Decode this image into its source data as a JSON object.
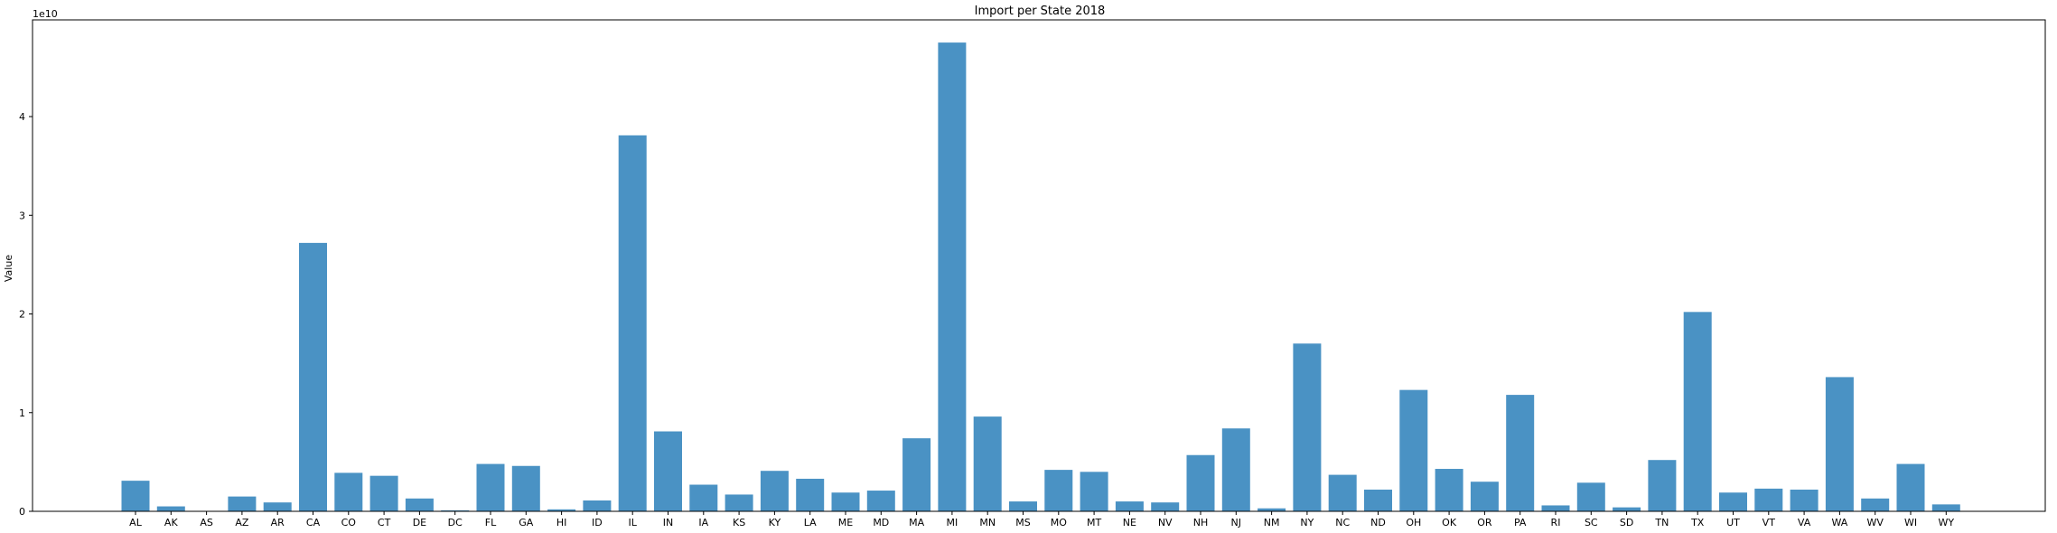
{
  "chart_data": {
    "type": "bar",
    "title": "Import per State 2018",
    "xlabel": "",
    "ylabel": "Value",
    "y_offset_label": "1e10",
    "y_scale": 10000000000,
    "ylim": [
      0,
      4.98
    ],
    "yticks": [
      0,
      1,
      2,
      3,
      4
    ],
    "ytick_labels": [
      "0",
      "1",
      "2",
      "3",
      "4"
    ],
    "grid": false,
    "legend": "none",
    "bar_color": "#4a92c4",
    "categories": [
      "AL",
      "AK",
      "AS",
      "AZ",
      "AR",
      "CA",
      "CO",
      "CT",
      "DE",
      "DC",
      "FL",
      "GA",
      "HI",
      "ID",
      "IL",
      "IN",
      "IA",
      "KS",
      "KY",
      "LA",
      "ME",
      "MD",
      "MA",
      "MI",
      "MN",
      "MS",
      "MO",
      "MT",
      "NE",
      "NV",
      "NH",
      "NJ",
      "NM",
      "NY",
      "NC",
      "ND",
      "OH",
      "OK",
      "OR",
      "PA",
      "RI",
      "SC",
      "SD",
      "TN",
      "TX",
      "UT",
      "VT",
      "VA",
      "WA",
      "WV",
      "WI",
      "WY"
    ],
    "values": [
      0.31,
      0.05,
      0.0,
      0.15,
      0.09,
      2.72,
      0.39,
      0.36,
      0.13,
      0.01,
      0.48,
      0.46,
      0.02,
      0.11,
      3.81,
      0.81,
      0.27,
      0.17,
      0.41,
      0.33,
      0.19,
      0.21,
      0.74,
      4.75,
      0.96,
      0.1,
      0.42,
      0.4,
      0.1,
      0.09,
      0.57,
      0.84,
      0.03,
      1.7,
      0.37,
      0.22,
      1.23,
      0.43,
      0.3,
      1.18,
      0.06,
      0.29,
      0.04,
      0.52,
      2.02,
      0.19,
      0.23,
      0.22,
      1.36,
      0.13,
      0.48,
      0.07
    ]
  }
}
